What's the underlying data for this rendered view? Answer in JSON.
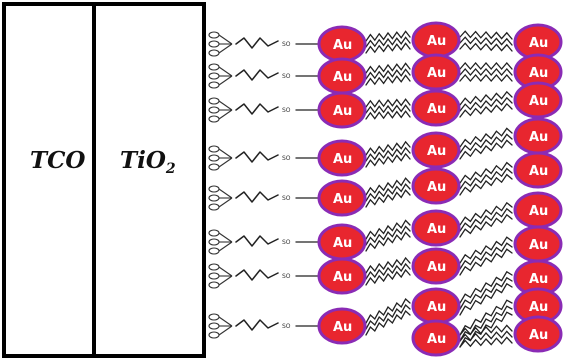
{
  "layers": {
    "tco_label": "TCO",
    "tio2_label": "TiO",
    "tio2_subscript": "2"
  },
  "nanoparticle": {
    "label": "Au",
    "fill_color": "#e8262f",
    "outline_color": "#8a2bb5",
    "rows": 8,
    "columns": 3
  },
  "molecule_tag": "SO"
}
